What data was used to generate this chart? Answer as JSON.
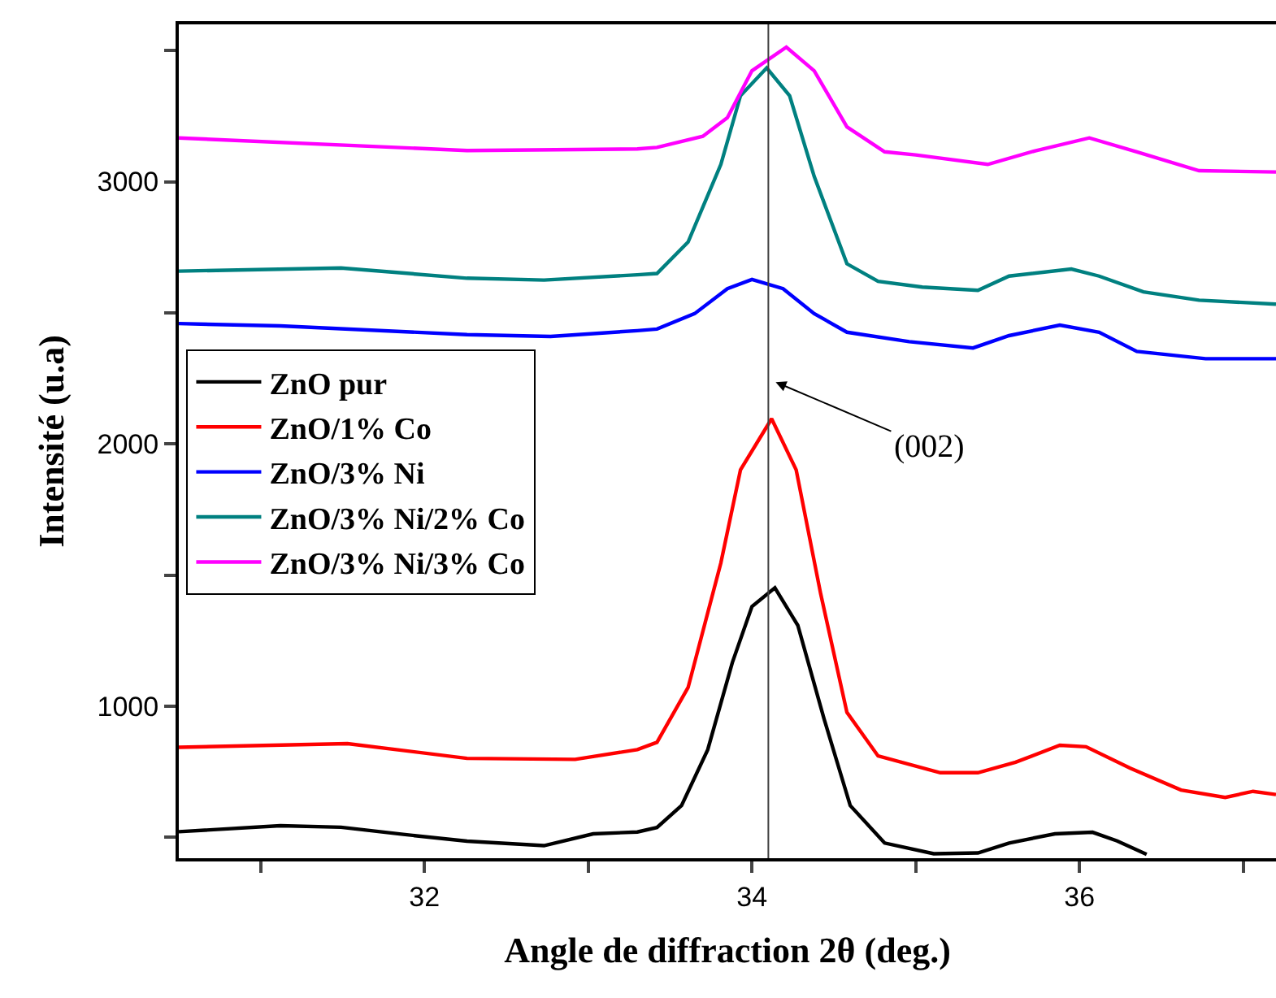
{
  "chart_data": {
    "type": "line",
    "xlabel": "Angle de diffraction 2θ (deg.)",
    "ylabel": "Intensité (u.a)",
    "xlim": [
      30.5,
      37.2
    ],
    "ylim": [
      420,
      3600
    ],
    "xticks": [
      {
        "value": 31,
        "label": null
      },
      32,
      {
        "value": 33,
        "label": null
      },
      34,
      {
        "value": 35,
        "label": null
      },
      36,
      {
        "value": 37,
        "label": null
      }
    ],
    "yticks": [
      {
        "value": 500,
        "label": null
      },
      1000,
      {
        "value": 1500,
        "label": null
      },
      2000,
      {
        "value": 2500,
        "label": null
      },
      3000,
      {
        "value": 3500,
        "label": null
      }
    ],
    "grid": false,
    "legend": "left",
    "marker": "none",
    "line_style": "solid",
    "ref_lines": [
      {
        "axis": "x",
        "value": 34.1,
        "label": null,
        "color": "#404040"
      }
    ],
    "annotations": [
      "(002)"
    ],
    "series": [
      {
        "name": "ZnO pur",
        "color": "#000000",
        "x": [
          30.5,
          31.12,
          31.49,
          31.87,
          32.26,
          32.73,
          33.03,
          33.3,
          33.42,
          33.57,
          33.73,
          33.88,
          34.0,
          34.14,
          34.28,
          34.44,
          34.6,
          34.81,
          35.11,
          35.38,
          35.57,
          35.85,
          36.08,
          36.23,
          36.41
        ],
        "values": [
          521,
          544,
          538,
          511,
          485,
          468,
          513,
          520,
          537,
          621,
          834,
          1166,
          1380,
          1451,
          1308,
          952,
          621,
          478,
          437,
          440,
          478,
          513,
          519,
          486,
          435
        ]
      },
      {
        "name": "ZnO/1% Co",
        "color": "#ff0000",
        "x": [
          30.5,
          31.53,
          32.26,
          32.92,
          33.3,
          33.42,
          33.61,
          33.81,
          33.93,
          34.12,
          34.27,
          34.42,
          34.58,
          34.77,
          35.15,
          35.38,
          35.61,
          35.88,
          36.04,
          36.31,
          36.62,
          36.89,
          37.06,
          37.2
        ],
        "values": [
          843,
          857,
          801,
          797,
          834,
          862,
          1071,
          1546,
          1901,
          2096,
          1901,
          1427,
          976,
          810,
          746,
          746,
          786,
          851,
          845,
          763,
          680,
          652,
          675,
          663
        ]
      },
      {
        "name": "ZnO/3% Ni",
        "color": "#0000ff",
        "x": [
          30.5,
          31.12,
          32.26,
          32.77,
          33.3,
          33.42,
          33.65,
          33.85,
          34.0,
          34.19,
          34.38,
          34.58,
          34.96,
          35.35,
          35.57,
          35.88,
          36.12,
          36.35,
          36.77,
          37.2
        ],
        "values": [
          2459,
          2450,
          2417,
          2410,
          2432,
          2438,
          2497,
          2592,
          2627,
          2592,
          2497,
          2426,
          2390,
          2366,
          2413,
          2453,
          2426,
          2353,
          2325,
          2325
        ]
      },
      {
        "name": "ZnO/3% Ni/2% Co",
        "color": "#008080",
        "x": [
          30.5,
          31.49,
          32.26,
          32.73,
          33.3,
          33.42,
          33.61,
          33.81,
          33.93,
          34.09,
          34.23,
          34.38,
          34.58,
          34.77,
          35.04,
          35.38,
          35.57,
          35.95,
          36.12,
          36.39,
          36.73,
          37.2
        ],
        "values": [
          2659,
          2671,
          2632,
          2625,
          2645,
          2650,
          2770,
          3066,
          3328,
          3434,
          3328,
          3020,
          2687,
          2620,
          2598,
          2586,
          2640,
          2667,
          2640,
          2580,
          2548,
          2533
        ]
      },
      {
        "name": "ZnO/3% Ni/3% Co",
        "color": "#ff00ff",
        "x": [
          30.5,
          32.26,
          33.3,
          33.42,
          33.7,
          33.85,
          34.0,
          34.21,
          34.38,
          34.58,
          34.81,
          35.0,
          35.44,
          35.73,
          36.06,
          36.35,
          36.73,
          37.2
        ],
        "values": [
          3167,
          3119,
          3125,
          3131,
          3173,
          3244,
          3423,
          3513,
          3423,
          3209,
          3114,
          3102,
          3066,
          3118,
          3167,
          3114,
          3042,
          3037
        ]
      }
    ]
  }
}
